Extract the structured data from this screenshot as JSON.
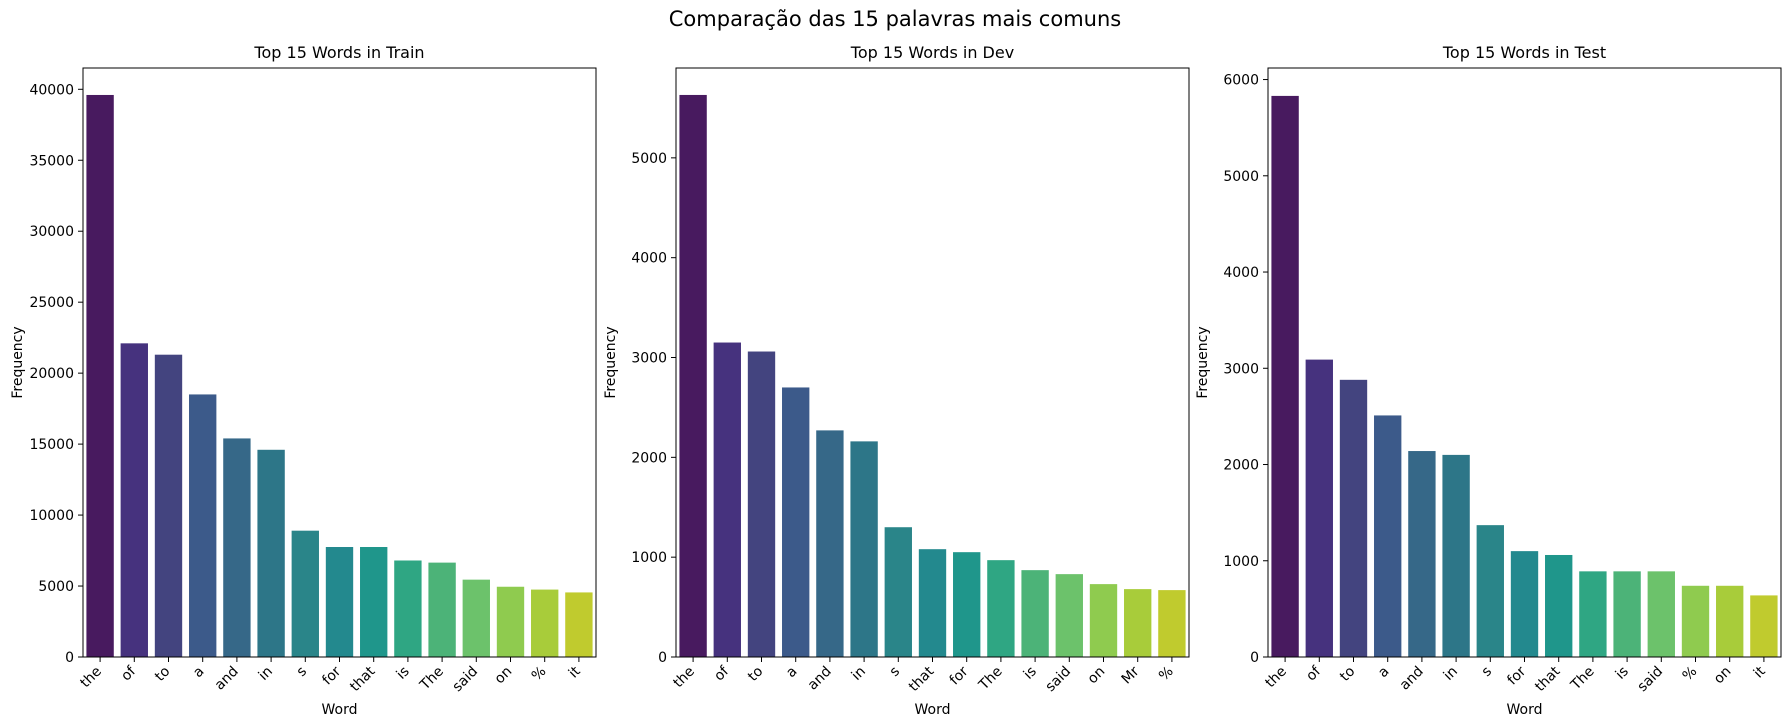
{
  "suptitle": "Comparação das 15 palavras mais comuns",
  "colors": [
    "#481a5f",
    "#46327e",
    "#43447f",
    "#3c5a8a",
    "#366888",
    "#2d7688",
    "#2a8589",
    "#23898e",
    "#1f968b",
    "#2fa683",
    "#4cb378",
    "#6cc26b",
    "#8fcb4f",
    "#a8cc3a",
    "#c0cb2e"
  ],
  "chart_data": [
    {
      "type": "bar",
      "title": "Top 15 Words in Train",
      "xlabel": "Word",
      "ylabel": "Frequency",
      "categories": [
        "the",
        "of",
        "to",
        "a",
        "and",
        "in",
        "s",
        "for",
        "that",
        "is",
        "The",
        "said",
        "on",
        "%",
        "it"
      ],
      "values": [
        39600,
        22100,
        21300,
        18500,
        15400,
        14600,
        8900,
        7750,
        7750,
        6800,
        6650,
        5450,
        4950,
        4750,
        4550
      ],
      "ylim": [
        0,
        41500
      ],
      "yticks": [
        0,
        5000,
        10000,
        15000,
        20000,
        25000,
        30000,
        35000,
        40000
      ]
    },
    {
      "type": "bar",
      "title": "Top 15 Words in Dev",
      "xlabel": "Word",
      "ylabel": "Frequency",
      "categories": [
        "the",
        "of",
        "to",
        "a",
        "and",
        "in",
        "s",
        "that",
        "for",
        "The",
        "is",
        "said",
        "on",
        "Mr",
        "%"
      ],
      "values": [
        5630,
        3150,
        3060,
        2700,
        2270,
        2160,
        1300,
        1080,
        1050,
        970,
        870,
        830,
        730,
        680,
        670
      ],
      "ylim": [
        0,
        5900
      ],
      "yticks": [
        0,
        1000,
        2000,
        3000,
        4000,
        5000
      ]
    },
    {
      "type": "bar",
      "title": "Top 15 Words in Test",
      "xlabel": "Word",
      "ylabel": "Frequency",
      "categories": [
        "the",
        "of",
        "to",
        "a",
        "and",
        "in",
        "s",
        "for",
        "that",
        "The",
        "is",
        "said",
        "%",
        "on",
        "it"
      ],
      "values": [
        5830,
        3090,
        2880,
        2510,
        2140,
        2100,
        1370,
        1100,
        1060,
        890,
        890,
        890,
        740,
        740,
        640
      ],
      "ylim": [
        0,
        6120
      ],
      "yticks": [
        0,
        1000,
        2000,
        3000,
        4000,
        5000,
        6000
      ]
    }
  ]
}
